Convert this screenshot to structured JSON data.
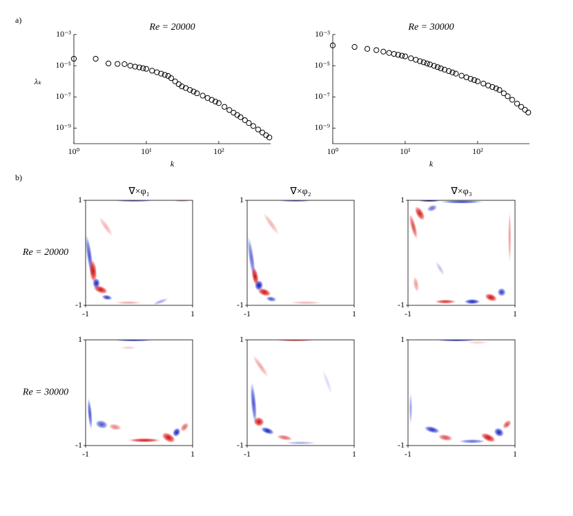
{
  "panel_labels": [
    "a)",
    "b)"
  ],
  "chart_data": [
    {
      "type": "scatter",
      "title": "Re = 20000",
      "xlabel": "k",
      "ylabel": "λₖ",
      "log_x": true,
      "log_y": true,
      "marker_color": "#000000",
      "xlim": [
        1,
        520
      ],
      "ylim": [
        1e-10,
        0.001
      ],
      "xticks": [
        {
          "value": 1,
          "label": "10⁰"
        },
        {
          "value": 10,
          "label": "10¹"
        },
        {
          "value": 100,
          "label": "10²"
        }
      ],
      "yticks": [
        {
          "value": 0.001,
          "label": "10⁻³"
        },
        {
          "value": 1e-05,
          "label": "10⁻⁵"
        },
        {
          "value": 1e-07,
          "label": "10⁻⁷"
        },
        {
          "value": 1e-09,
          "label": "10⁻⁹"
        }
      ],
      "x": [
        1,
        2,
        3,
        4,
        5,
        6,
        7,
        8,
        9,
        10,
        12,
        14,
        16,
        18,
        20,
        22,
        25,
        28,
        31,
        35,
        40,
        45,
        50,
        60,
        70,
        80,
        90,
        100,
        120,
        140,
        160,
        180,
        200,
        230,
        260,
        300,
        350,
        400,
        450,
        500
      ],
      "values": [
        2.8e-05,
        2.8e-05,
        1.4e-05,
        1.3e-05,
        1.26e-05,
        1e-05,
        8.7e-06,
        7.8e-06,
        6.9e-06,
        6.3e-06,
        4.8e-06,
        3.8e-06,
        3.1e-06,
        2.6e-06,
        2.2e-06,
        1.6e-06,
        9.8e-07,
        6.5e-07,
        4.7e-07,
        3.7e-07,
        2.8e-07,
        2.2e-07,
        1.7e-07,
        1.2e-07,
        8.5e-08,
        6.4e-08,
        5e-08,
        4e-08,
        2.3e-08,
        1.45e-08,
        9.8e-09,
        6.9e-09,
        5e-09,
        3.2e-09,
        2.1e-09,
        1.35e-09,
        8.1e-10,
        5.2e-10,
        3.5e-10,
        2.5e-10
      ]
    },
    {
      "type": "scatter",
      "title": "Re = 30000",
      "xlabel": "k",
      "log_x": true,
      "log_y": true,
      "marker_color": "#000000",
      "xlim": [
        1,
        520
      ],
      "ylim": [
        1e-10,
        0.001
      ],
      "xticks": [
        {
          "value": 1,
          "label": "10⁰"
        },
        {
          "value": 10,
          "label": "10¹"
        },
        {
          "value": 100,
          "label": "10²"
        }
      ],
      "yticks": [
        {
          "value": 0.001,
          "label": "10⁻³"
        },
        {
          "value": 1e-05,
          "label": "10⁻⁵"
        },
        {
          "value": 1e-07,
          "label": "10⁻⁷"
        },
        {
          "value": 1e-09,
          "label": "10⁻⁹"
        }
      ],
      "x": [
        1,
        2,
        3,
        4,
        5,
        6,
        7,
        8,
        9,
        10,
        12,
        14,
        16,
        18,
        20,
        22,
        25,
        28,
        31,
        35,
        40,
        45,
        50,
        60,
        70,
        80,
        90,
        100,
        120,
        140,
        160,
        180,
        200,
        230,
        260,
        300,
        350,
        400,
        450,
        500
      ],
      "values": [
        0.0002,
        0.00016,
        0.00012,
        0.0001,
        8e-05,
        6.6e-05,
        5.7e-05,
        5e-05,
        4.4e-05,
        4e-05,
        3e-05,
        2.4e-05,
        1.95e-05,
        1.65e-05,
        1.4e-05,
        1.2e-05,
        9.8e-06,
        8.1e-06,
        6.8e-06,
        5.6e-06,
        4.5e-06,
        3.7e-06,
        3.1e-06,
        2.3e-06,
        1.8e-06,
        1.45e-06,
        1.2e-06,
        1e-06,
        7.2e-07,
        5.4e-07,
        4.3e-07,
        3.5e-07,
        2.8e-07,
        1.7e-07,
        1.1e-07,
        6.5e-08,
        3.7e-08,
        2.3e-08,
        1.5e-08,
        1e-08
      ]
    },
    {
      "type": "heatmap",
      "title": "∇×φ₁",
      "ylabel": "Re = 20000",
      "xlim": [
        -1,
        1
      ],
      "ylim": [
        -1,
        1
      ],
      "xticks": [
        -1,
        1
      ],
      "yticks": [
        -1,
        1
      ]
    },
    {
      "type": "heatmap",
      "title": "∇×φ₂",
      "xlim": [
        -1,
        1
      ],
      "ylim": [
        -1,
        1
      ],
      "xticks": [
        -1,
        1
      ],
      "yticks": [
        -1,
        1
      ]
    },
    {
      "type": "heatmap",
      "title": "∇×φ₃",
      "xlim": [
        -1,
        1
      ],
      "ylim": [
        -1,
        1
      ],
      "xticks": [
        -1,
        1
      ],
      "yticks": [
        -1,
        1
      ]
    },
    {
      "type": "heatmap",
      "ylabel": "Re = 30000",
      "xlim": [
        -1,
        1
      ],
      "ylim": [
        -1,
        1
      ],
      "xticks": [
        -1,
        1
      ],
      "yticks": [
        -1,
        1
      ]
    },
    {
      "type": "heatmap",
      "xlim": [
        -1,
        1
      ],
      "ylim": [
        -1,
        1
      ],
      "xticks": [
        -1,
        1
      ],
      "yticks": [
        -1,
        1
      ]
    },
    {
      "type": "heatmap",
      "xlim": [
        -1,
        1
      ],
      "ylim": [
        -1,
        1
      ],
      "xticks": [
        -1,
        1
      ],
      "yticks": [
        -1,
        1
      ]
    }
  ]
}
